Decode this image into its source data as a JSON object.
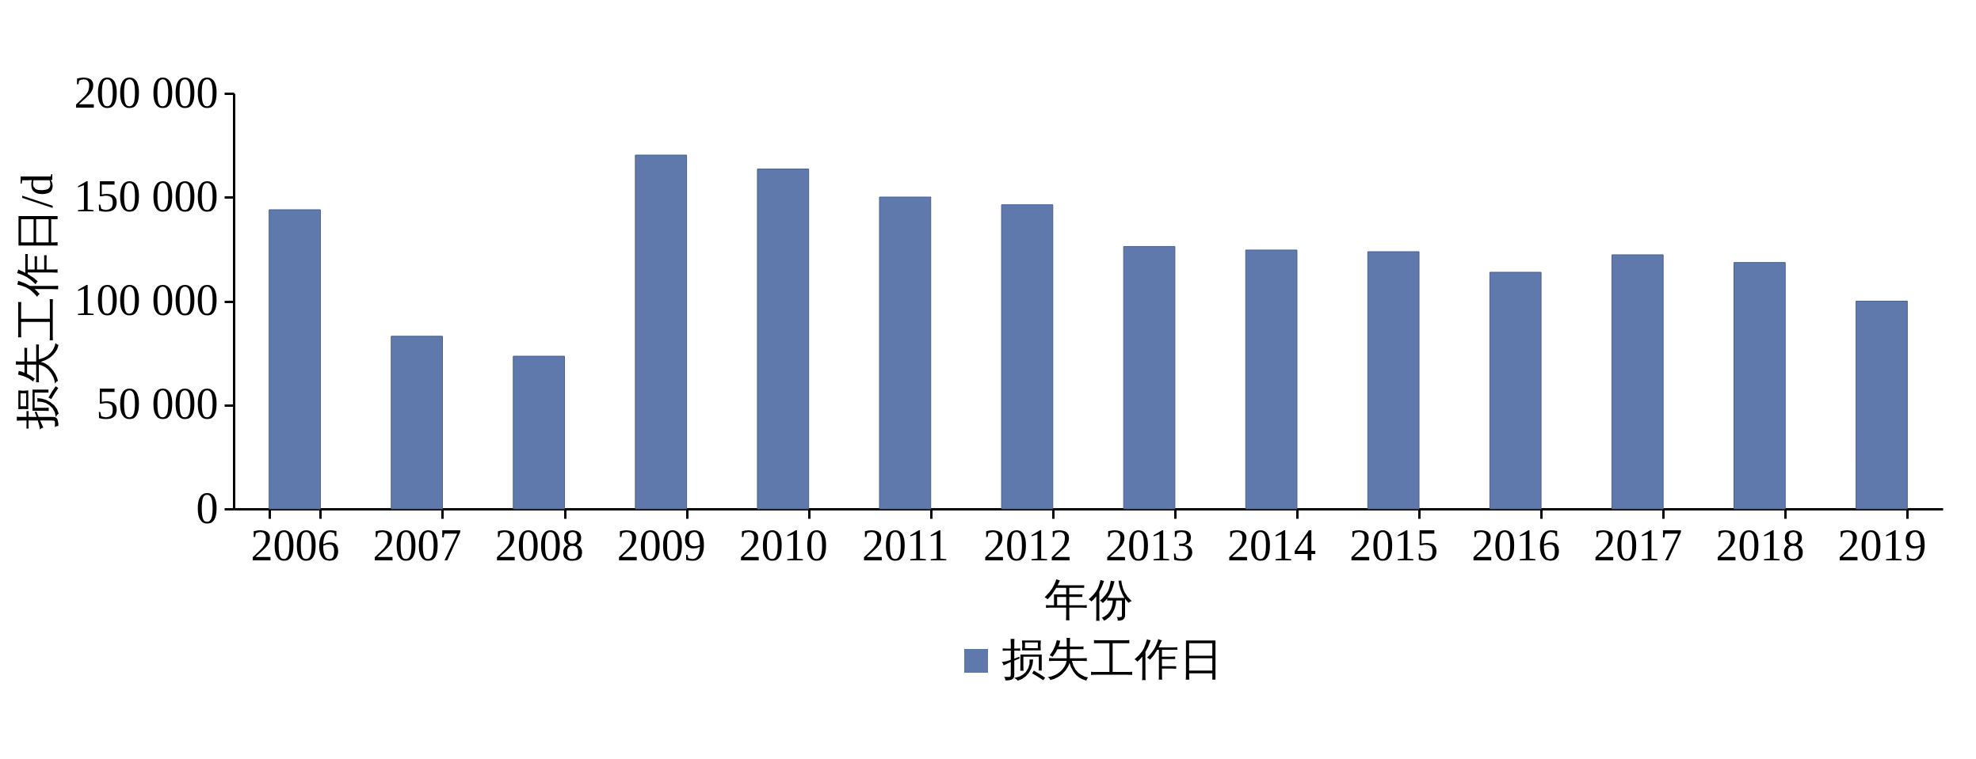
{
  "chart_data": {
    "type": "bar",
    "xlabel": "年份",
    "ylabel": "损失工作日/d",
    "categories": [
      "2006",
      "2007",
      "2008",
      "2009",
      "2010",
      "2011",
      "2012",
      "2013",
      "2014",
      "2015",
      "2016",
      "2017",
      "2018",
      "2019"
    ],
    "series": [
      {
        "name": "损失工作日",
        "color": "#6079ac",
        "values": [
          144000,
          83100,
          73500,
          170300,
          163600,
          150100,
          146400,
          126300,
          124600,
          123800,
          113900,
          122300,
          118600,
          100000
        ]
      }
    ],
    "ylim": [
      0,
      200000
    ],
    "yticks": [
      0,
      {
        "value": 50000,
        "label": "50 000"
      },
      {
        "value": 100000,
        "label": "100 000"
      },
      {
        "value": 150000,
        "label": "150 000"
      },
      {
        "value": 200000,
        "label": "200 000"
      }
    ],
    "grid": false,
    "legend": "bottom"
  }
}
